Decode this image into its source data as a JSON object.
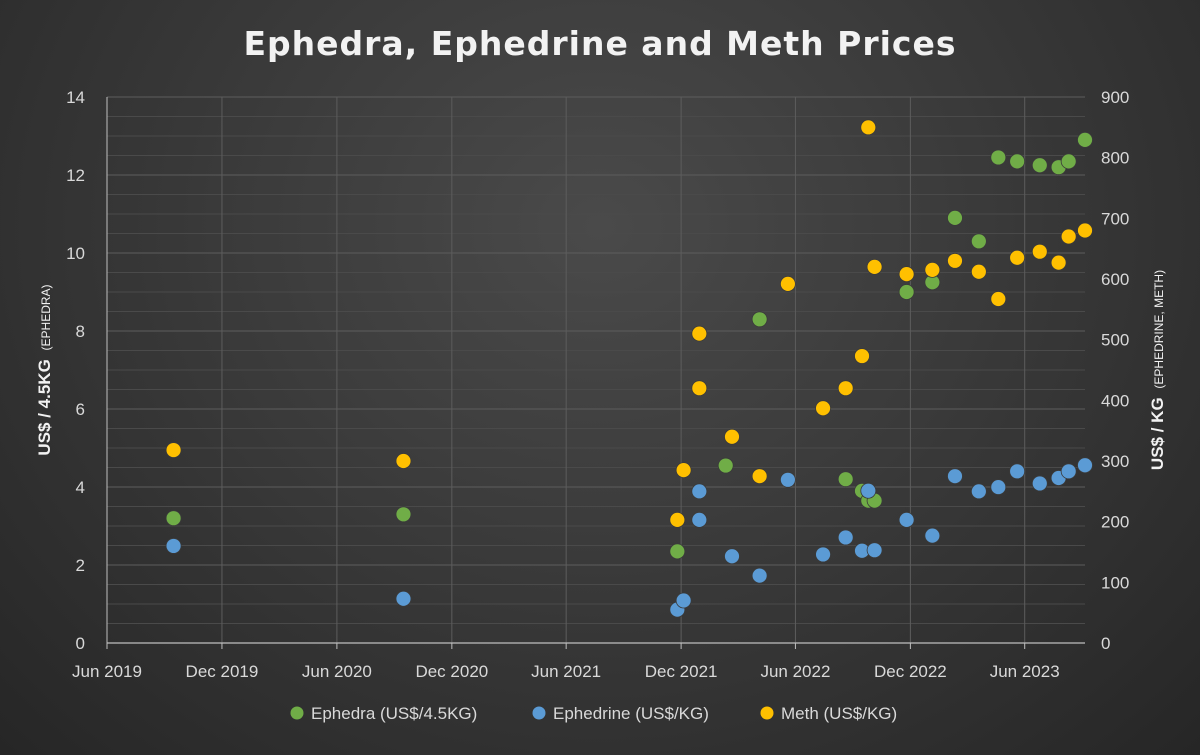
{
  "colors": {
    "ephedra": "#70ad47",
    "ephedrine": "#5b9bd5",
    "meth": "#ffc000",
    "gridline": "#5d5d5d",
    "minor_gridline": "#4a4a4a",
    "text": "#d9d9d9"
  },
  "chart_data": {
    "type": "scatter",
    "title": "Ephedra, Ephedrine and Meth Prices",
    "ylabel_left": {
      "main": "US$ / 4.5KG",
      "sub": "(EPHEDRA)"
    },
    "ylabel_right": {
      "main": "US$ / KG",
      "sub": "(EPHEDRINE, METH)"
    },
    "x_ticks": [
      "2019-06-01",
      "2019-12-01",
      "2020-06-01",
      "2020-12-01",
      "2021-06-01",
      "2021-12-01",
      "2022-06-01",
      "2022-12-01",
      "2023-06-01"
    ],
    "x_tick_labels": [
      "Jun 2019",
      "Dec 2019",
      "Jun 2020",
      "Dec 2020",
      "Jun 2021",
      "Dec 2021",
      "Jun 2022",
      "Dec 2022",
      "Jun 2023"
    ],
    "xlim": [
      "2019-06-01",
      "2023-09-05"
    ],
    "ylim_left": [
      0,
      14
    ],
    "ylim_right": [
      0,
      900
    ],
    "y_left_ticks": [
      0,
      2,
      4,
      6,
      8,
      10,
      12,
      14
    ],
    "y_right_ticks": [
      0,
      100,
      200,
      300,
      400,
      500,
      600,
      700,
      800,
      900
    ],
    "legend_position": "bottom",
    "grid": true,
    "series": [
      {
        "name": "Ephedra (US$/4.5KG)",
        "axis": "left",
        "points": [
          {
            "x": "2019-09-15",
            "y": 3.2
          },
          {
            "x": "2020-09-15",
            "y": 3.3
          },
          {
            "x": "2021-11-25",
            "y": 2.35
          },
          {
            "x": "2022-02-10",
            "y": 4.55
          },
          {
            "x": "2022-04-05",
            "y": 8.3
          },
          {
            "x": "2022-08-20",
            "y": 4.2
          },
          {
            "x": "2022-09-15",
            "y": 3.9
          },
          {
            "x": "2022-09-25",
            "y": 3.65
          },
          {
            "x": "2022-10-05",
            "y": 3.65
          },
          {
            "x": "2022-11-25",
            "y": 9.0
          },
          {
            "x": "2023-01-05",
            "y": 9.25
          },
          {
            "x": "2023-02-10",
            "y": 10.9
          },
          {
            "x": "2023-03-20",
            "y": 10.3
          },
          {
            "x": "2023-04-20",
            "y": 12.45
          },
          {
            "x": "2023-05-20",
            "y": 12.35
          },
          {
            "x": "2023-06-25",
            "y": 12.25
          },
          {
            "x": "2023-07-25",
            "y": 12.2
          },
          {
            "x": "2023-08-10",
            "y": 12.35
          },
          {
            "x": "2023-09-05",
            "y": 12.9
          }
        ]
      },
      {
        "name": "Ephedrine (US$/KG)",
        "axis": "right",
        "points": [
          {
            "x": "2019-09-15",
            "y": 160
          },
          {
            "x": "2020-09-15",
            "y": 73
          },
          {
            "x": "2021-11-25",
            "y": 55
          },
          {
            "x": "2021-12-05",
            "y": 70
          },
          {
            "x": "2021-12-30",
            "y": 250
          },
          {
            "x": "2021-12-30",
            "y": 203
          },
          {
            "x": "2022-02-20",
            "y": 143
          },
          {
            "x": "2022-04-05",
            "y": 111
          },
          {
            "x": "2022-05-20",
            "y": 269
          },
          {
            "x": "2022-07-15",
            "y": 146
          },
          {
            "x": "2022-08-20",
            "y": 174
          },
          {
            "x": "2022-09-15",
            "y": 152
          },
          {
            "x": "2022-09-25",
            "y": 251
          },
          {
            "x": "2022-10-05",
            "y": 153
          },
          {
            "x": "2022-11-25",
            "y": 203
          },
          {
            "x": "2023-01-05",
            "y": 177
          },
          {
            "x": "2023-02-10",
            "y": 275
          },
          {
            "x": "2023-03-20",
            "y": 250
          },
          {
            "x": "2023-04-20",
            "y": 257
          },
          {
            "x": "2023-05-20",
            "y": 283
          },
          {
            "x": "2023-06-25",
            "y": 263
          },
          {
            "x": "2023-07-25",
            "y": 272
          },
          {
            "x": "2023-08-10",
            "y": 283
          },
          {
            "x": "2023-09-05",
            "y": 293
          }
        ]
      },
      {
        "name": "Meth (US$/KG)",
        "axis": "right",
        "points": [
          {
            "x": "2019-09-15",
            "y": 318
          },
          {
            "x": "2020-09-15",
            "y": 300
          },
          {
            "x": "2021-11-25",
            "y": 203
          },
          {
            "x": "2021-12-05",
            "y": 285
          },
          {
            "x": "2021-12-30",
            "y": 510
          },
          {
            "x": "2021-12-30",
            "y": 420
          },
          {
            "x": "2022-02-20",
            "y": 340
          },
          {
            "x": "2022-04-05",
            "y": 275
          },
          {
            "x": "2022-05-20",
            "y": 592
          },
          {
            "x": "2022-07-15",
            "y": 387
          },
          {
            "x": "2022-08-20",
            "y": 420
          },
          {
            "x": "2022-09-15",
            "y": 473
          },
          {
            "x": "2022-09-25",
            "y": 850
          },
          {
            "x": "2022-10-05",
            "y": 620
          },
          {
            "x": "2022-11-25",
            "y": 608
          },
          {
            "x": "2023-01-05",
            "y": 615
          },
          {
            "x": "2023-02-10",
            "y": 630
          },
          {
            "x": "2023-03-20",
            "y": 612
          },
          {
            "x": "2023-04-20",
            "y": 567
          },
          {
            "x": "2023-05-20",
            "y": 635
          },
          {
            "x": "2023-06-25",
            "y": 645
          },
          {
            "x": "2023-07-25",
            "y": 627
          },
          {
            "x": "2023-08-10",
            "y": 670
          },
          {
            "x": "2023-09-05",
            "y": 680
          }
        ]
      }
    ]
  }
}
